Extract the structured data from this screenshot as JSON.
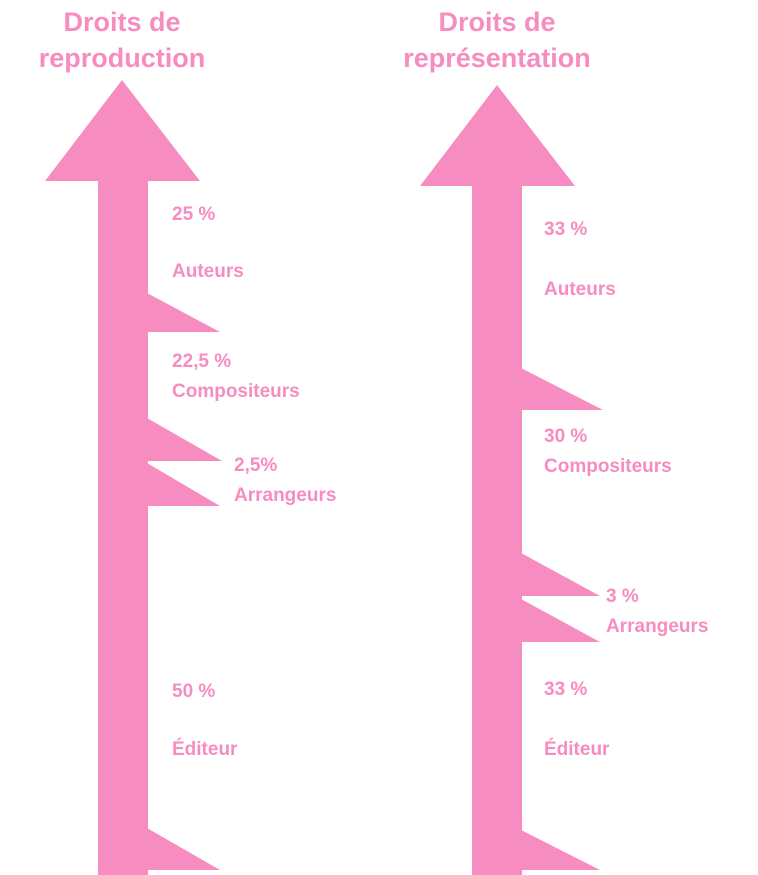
{
  "arrows": [
    {
      "title": [
        "Droits de",
        "reproduction"
      ],
      "segments": [
        {
          "share": "25 %",
          "label": "Auteurs"
        },
        {
          "share": "22,5 %",
          "label": "Compositeurs"
        },
        {
          "share": "2,5%",
          "label": "Arrangeurs"
        },
        {
          "share": "50 %",
          "label": "Éditeur"
        }
      ]
    },
    {
      "title": [
        "Droits de",
        "représentation"
      ],
      "segments": [
        {
          "share": "33 %",
          "label": "Auteurs"
        },
        {
          "share": "30 %",
          "label": "Compositeurs"
        },
        {
          "share": "3 %",
          "label": "Arrangeurs"
        },
        {
          "share": "33 %",
          "label": "Éditeur"
        }
      ]
    }
  ]
}
